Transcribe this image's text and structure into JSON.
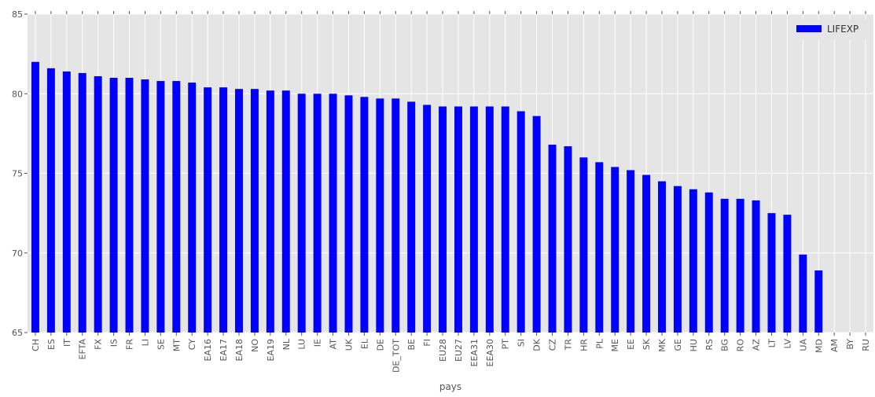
{
  "chart_data": {
    "type": "bar",
    "title": "",
    "xlabel": "pays",
    "ylabel": "",
    "ylim": [
      65,
      85
    ],
    "yticks": [
      65,
      70,
      75,
      80,
      85
    ],
    "grid": true,
    "legend_position": "top-right",
    "categories": [
      "CH",
      "ES",
      "IT",
      "EFTA",
      "FX",
      "IS",
      "FR",
      "LI",
      "SE",
      "MT",
      "CY",
      "EA16",
      "EA17",
      "EA18",
      "NO",
      "EA19",
      "NL",
      "LU",
      "IE",
      "AT",
      "UK",
      "EL",
      "DE",
      "DE_TOT",
      "BE",
      "FI",
      "EU28",
      "EU27",
      "EEA31",
      "EEA30",
      "PT",
      "SI",
      "DK",
      "CZ",
      "TR",
      "HR",
      "PL",
      "ME",
      "EE",
      "SK",
      "MK",
      "GE",
      "HU",
      "RS",
      "BG",
      "RO",
      "AZ",
      "LT",
      "LV",
      "UA",
      "MD",
      "AM",
      "BY",
      "RU"
    ],
    "series": [
      {
        "name": "LIFEXP",
        "color": "#0000ff",
        "values": [
          82.0,
          81.6,
          81.4,
          81.3,
          81.1,
          81.0,
          81.0,
          80.9,
          80.8,
          80.8,
          80.7,
          80.4,
          80.4,
          80.3,
          80.3,
          80.2,
          80.2,
          80.0,
          80.0,
          80.0,
          79.9,
          79.8,
          79.7,
          79.7,
          79.5,
          79.3,
          79.2,
          79.2,
          79.2,
          79.2,
          79.2,
          78.9,
          78.6,
          76.8,
          76.7,
          76.0,
          75.7,
          75.4,
          75.2,
          74.9,
          74.5,
          74.2,
          74.0,
          73.8,
          73.4,
          73.4,
          73.3,
          72.5,
          72.4,
          69.9,
          68.9,
          null,
          null,
          null
        ]
      }
    ]
  }
}
